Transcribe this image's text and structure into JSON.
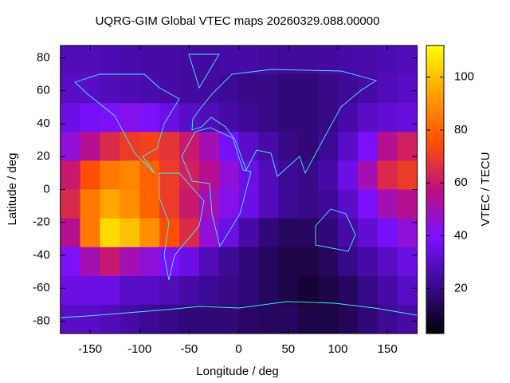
{
  "chart_data": {
    "type": "heatmap",
    "title": "UQRG-GIM Global VTEC maps 20260329.088.00000",
    "xlabel": "Longitude / deg",
    "ylabel": "Latitude / deg",
    "cblabel": "VTEC / TECU",
    "xlim": [
      -180,
      180
    ],
    "ylim": [
      -87.5,
      87.5
    ],
    "cblim": [
      3,
      112
    ],
    "xticks": [
      -150,
      -100,
      -50,
      0,
      50,
      100,
      150
    ],
    "yticks": [
      -80,
      -60,
      -40,
      -20,
      0,
      20,
      40,
      60,
      80
    ],
    "cbticks": [
      20,
      40,
      60,
      80,
      100
    ],
    "colormap": [
      "#000000",
      "#3a0a90",
      "#7a10ff",
      "#c01080",
      "#ff5000",
      "#ffa000",
      "#ffff00"
    ],
    "x": [
      -170,
      -150,
      -130,
      -110,
      -90,
      -70,
      -50,
      -30,
      -10,
      10,
      30,
      50,
      70,
      90,
      110,
      130,
      150,
      170
    ],
    "y": [
      78.75,
      61.25,
      43.75,
      26.25,
      8.75,
      -8.75,
      -26.25,
      -43.75,
      -61.25,
      -78.75
    ],
    "z": [
      [
        28,
        28,
        27,
        26,
        25,
        25,
        24,
        24,
        25,
        25,
        24,
        23,
        23,
        24,
        25,
        26,
        27,
        28
      ],
      [
        30,
        30,
        28,
        27,
        26,
        25,
        24,
        24,
        22,
        20,
        20,
        18,
        18,
        20,
        22,
        25,
        28,
        30
      ],
      [
        35,
        38,
        40,
        42,
        40,
        35,
        30,
        28,
        25,
        22,
        20,
        18,
        18,
        20,
        25,
        30,
        32,
        34
      ],
      [
        45,
        55,
        65,
        70,
        72,
        68,
        60,
        50,
        38,
        30,
        25,
        20,
        18,
        22,
        30,
        40,
        55,
        62
      ],
      [
        60,
        75,
        85,
        88,
        80,
        70,
        62,
        55,
        45,
        35,
        28,
        22,
        20,
        25,
        35,
        50,
        65,
        70
      ],
      [
        65,
        85,
        95,
        90,
        80,
        70,
        60,
        50,
        42,
        35,
        28,
        22,
        20,
        22,
        30,
        40,
        50,
        55
      ],
      [
        55,
        85,
        105,
        100,
        90,
        75,
        65,
        45,
        35,
        25,
        18,
        15,
        15,
        18,
        25,
        32,
        38,
        45
      ],
      [
        40,
        50,
        60,
        50,
        45,
        40,
        35,
        28,
        22,
        18,
        15,
        12,
        12,
        15,
        20,
        25,
        30,
        35
      ],
      [
        35,
        35,
        35,
        30,
        30,
        28,
        25,
        22,
        20,
        18,
        15,
        12,
        10,
        12,
        15,
        20,
        25,
        30
      ],
      [
        30,
        30,
        28,
        25,
        22,
        20,
        18,
        18,
        18,
        16,
        15,
        15,
        12,
        12,
        14,
        18,
        22,
        25
      ]
    ]
  }
}
